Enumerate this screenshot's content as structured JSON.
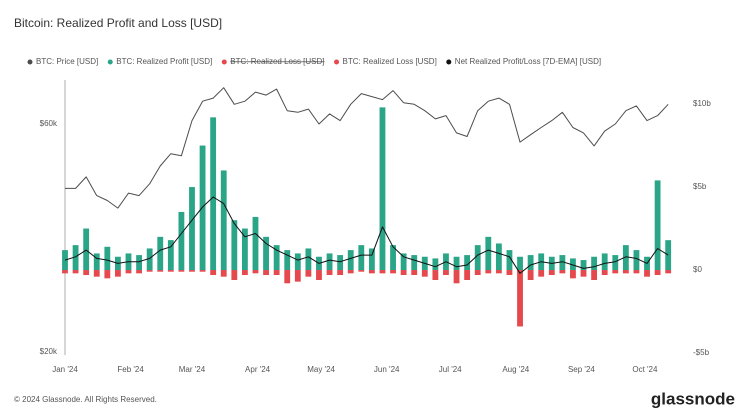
{
  "chart_data": {
    "type": "combo",
    "title": "Bitcoin: Realized Profit and Loss [USD]",
    "x": [
      0,
      5,
      10,
      15,
      20,
      25,
      30,
      35,
      40,
      45,
      50,
      55,
      60,
      65,
      70,
      75,
      80,
      85,
      90,
      95,
      100,
      105,
      110,
      115,
      120,
      125,
      130,
      135,
      140,
      145,
      150,
      155,
      160,
      165,
      170,
      175,
      180,
      185,
      190,
      195,
      200,
      205,
      210,
      215,
      220,
      225,
      230,
      235,
      240,
      245,
      250,
      255,
      260,
      265,
      270,
      275,
      280,
      285
    ],
    "xlim": [
      0,
      292
    ],
    "xticks": [
      {
        "value": 0,
        "label": "Jan '24"
      },
      {
        "value": 31,
        "label": "Feb '24"
      },
      {
        "value": 60,
        "label": "Mar '24"
      },
      {
        "value": 91,
        "label": "Apr '24"
      },
      {
        "value": 121,
        "label": "May '24"
      },
      {
        "value": 152,
        "label": "Jun '24"
      },
      {
        "value": 182,
        "label": "Jul '24"
      },
      {
        "value": 213,
        "label": "Aug '24"
      },
      {
        "value": 244,
        "label": "Sep '24"
      },
      {
        "value": 274,
        "label": "Oct '24"
      }
    ],
    "ylim": [
      19700,
      74200
    ],
    "log_scale_y": true,
    "yticks": [
      {
        "value": 60000,
        "label": "$60k"
      },
      {
        "value": 20000,
        "label": "$20k"
      }
    ],
    "y2lim": [
      -5120000000.0,
      11450000000.0
    ],
    "y2ticks": [
      {
        "value": 10000000000.0,
        "label": "$10b"
      },
      {
        "value": 5000000000.0,
        "label": "$5b"
      },
      {
        "value": 0,
        "label": "$0"
      },
      {
        "value": -5000000000.0,
        "label": "-$5b"
      }
    ],
    "grid": false,
    "series": [
      {
        "name": "BTC: Price [USD]",
        "type": "line",
        "axis": "y",
        "color": "#4d4d4d",
        "values": [
          44000,
          44000,
          46500,
          42500,
          41500,
          40000,
          43000,
          42500,
          45000,
          49000,
          52000,
          51500,
          61000,
          67000,
          68000,
          71500,
          66000,
          67000,
          70000,
          69000,
          71000,
          64000,
          63500,
          64500,
          60000,
          63000,
          61000,
          66000,
          69500,
          68500,
          67500,
          70500,
          66500,
          66000,
          64000,
          61500,
          62500,
          57500,
          56500,
          64000,
          67000,
          68000,
          66000,
          55000,
          57000,
          59000,
          61000,
          63500,
          59000,
          57500,
          54000,
          58000,
          60000,
          64000,
          65500,
          61000,
          62500,
          66000
        ]
      },
      {
        "name": "BTC: Realized Profit [USD]",
        "type": "bar",
        "axis": "y2",
        "color": "#2aa587",
        "values": [
          1200000000.0,
          1500000000.0,
          2500000000.0,
          1000000000.0,
          1400000000.0,
          800000000.0,
          1000000000.0,
          900000000.0,
          1300000000.0,
          2000000000.0,
          1800000000.0,
          3500000000.0,
          5000000000.0,
          7500000000.0,
          9200000000.0,
          6000000000.0,
          3000000000.0,
          2500000000.0,
          3200000000.0,
          2000000000.0,
          1500000000.0,
          1200000000.0,
          1000000000.0,
          1300000000.0,
          800000000.0,
          1000000000.0,
          900000000.0,
          1200000000.0,
          1500000000.0,
          1300000000.0,
          9800000000.0,
          1500000000.0,
          1000000000.0,
          900000000.0,
          800000000.0,
          700000000.0,
          1000000000.0,
          800000000.0,
          900000000.0,
          1500000000.0,
          2000000000.0,
          1600000000.0,
          1200000000.0,
          800000000.0,
          900000000.0,
          1000000000.0,
          800000000.0,
          900000000.0,
          700000000.0,
          600000000.0,
          800000000.0,
          1000000000.0,
          900000000.0,
          1500000000.0,
          1200000000.0,
          800000000.0,
          5400000000.0,
          1800000000.0
        ]
      },
      {
        "name": "BTC: Realized Loss [USD]",
        "type": "bar",
        "axis": "y2",
        "color": "#e5484d",
        "values": [
          -200000000.0,
          -200000000.0,
          -300000000.0,
          -400000000.0,
          -500000000.0,
          -400000000.0,
          -200000000.0,
          -200000000.0,
          -100000000.0,
          -100000000.0,
          -100000000.0,
          -100000000.0,
          -100000000.0,
          -100000000.0,
          -300000000.0,
          -400000000.0,
          -600000000.0,
          -300000000.0,
          -200000000.0,
          -300000000.0,
          -300000000.0,
          -800000000.0,
          -700000000.0,
          -400000000.0,
          -600000000.0,
          -300000000.0,
          -300000000.0,
          -200000000.0,
          -100000000.0,
          -200000000.0,
          -200000000.0,
          -200000000.0,
          -300000000.0,
          -300000000.0,
          -400000000.0,
          -600000000.0,
          -300000000.0,
          -800000000.0,
          -600000000.0,
          -300000000.0,
          -200000000.0,
          -200000000.0,
          -300000000.0,
          -3400000000.0,
          -600000000.0,
          -400000000.0,
          -300000000.0,
          -200000000.0,
          -500000000.0,
          -400000000.0,
          -600000000.0,
          -300000000.0,
          -200000000.0,
          -200000000.0,
          -200000000.0,
          -400000000.0,
          -300000000.0,
          -200000000.0
        ]
      },
      {
        "name": "Net Realized Profit/Loss [7D-EMA] [USD]",
        "type": "line",
        "axis": "y2",
        "color": "#111111",
        "values": [
          600000000.0,
          800000000.0,
          1200000000.0,
          700000000.0,
          600000000.0,
          400000000.0,
          500000000.0,
          500000000.0,
          700000000.0,
          1200000000.0,
          1400000000.0,
          2200000000.0,
          3000000000.0,
          3800000000.0,
          4400000000.0,
          4000000000.0,
          2800000000.0,
          2000000000.0,
          2200000000.0,
          1600000000.0,
          1200000000.0,
          900000000.0,
          600000000.0,
          800000000.0,
          400000000.0,
          600000000.0,
          500000000.0,
          700000000.0,
          900000000.0,
          900000000.0,
          2600000000.0,
          1400000000.0,
          800000000.0,
          600000000.0,
          400000000.0,
          200000000.0,
          500000000.0,
          200000000.0,
          300000000.0,
          900000000.0,
          1200000000.0,
          1000000000.0,
          800000000.0,
          -200000000.0,
          300000000.0,
          500000000.0,
          400000000.0,
          500000000.0,
          300000000.0,
          100000000.0,
          200000000.0,
          400000000.0,
          500000000.0,
          800000000.0,
          700000000.0,
          400000000.0,
          1300000000.0,
          900000000.0
        ]
      }
    ],
    "hidden_series": [
      {
        "name": "BTC: Realized Loss [USD]",
        "color": "#e5484d"
      }
    ]
  },
  "footer": {
    "copyright": "© 2024 Glassnode. All Rights Reserved.",
    "brand": "glassnode"
  }
}
